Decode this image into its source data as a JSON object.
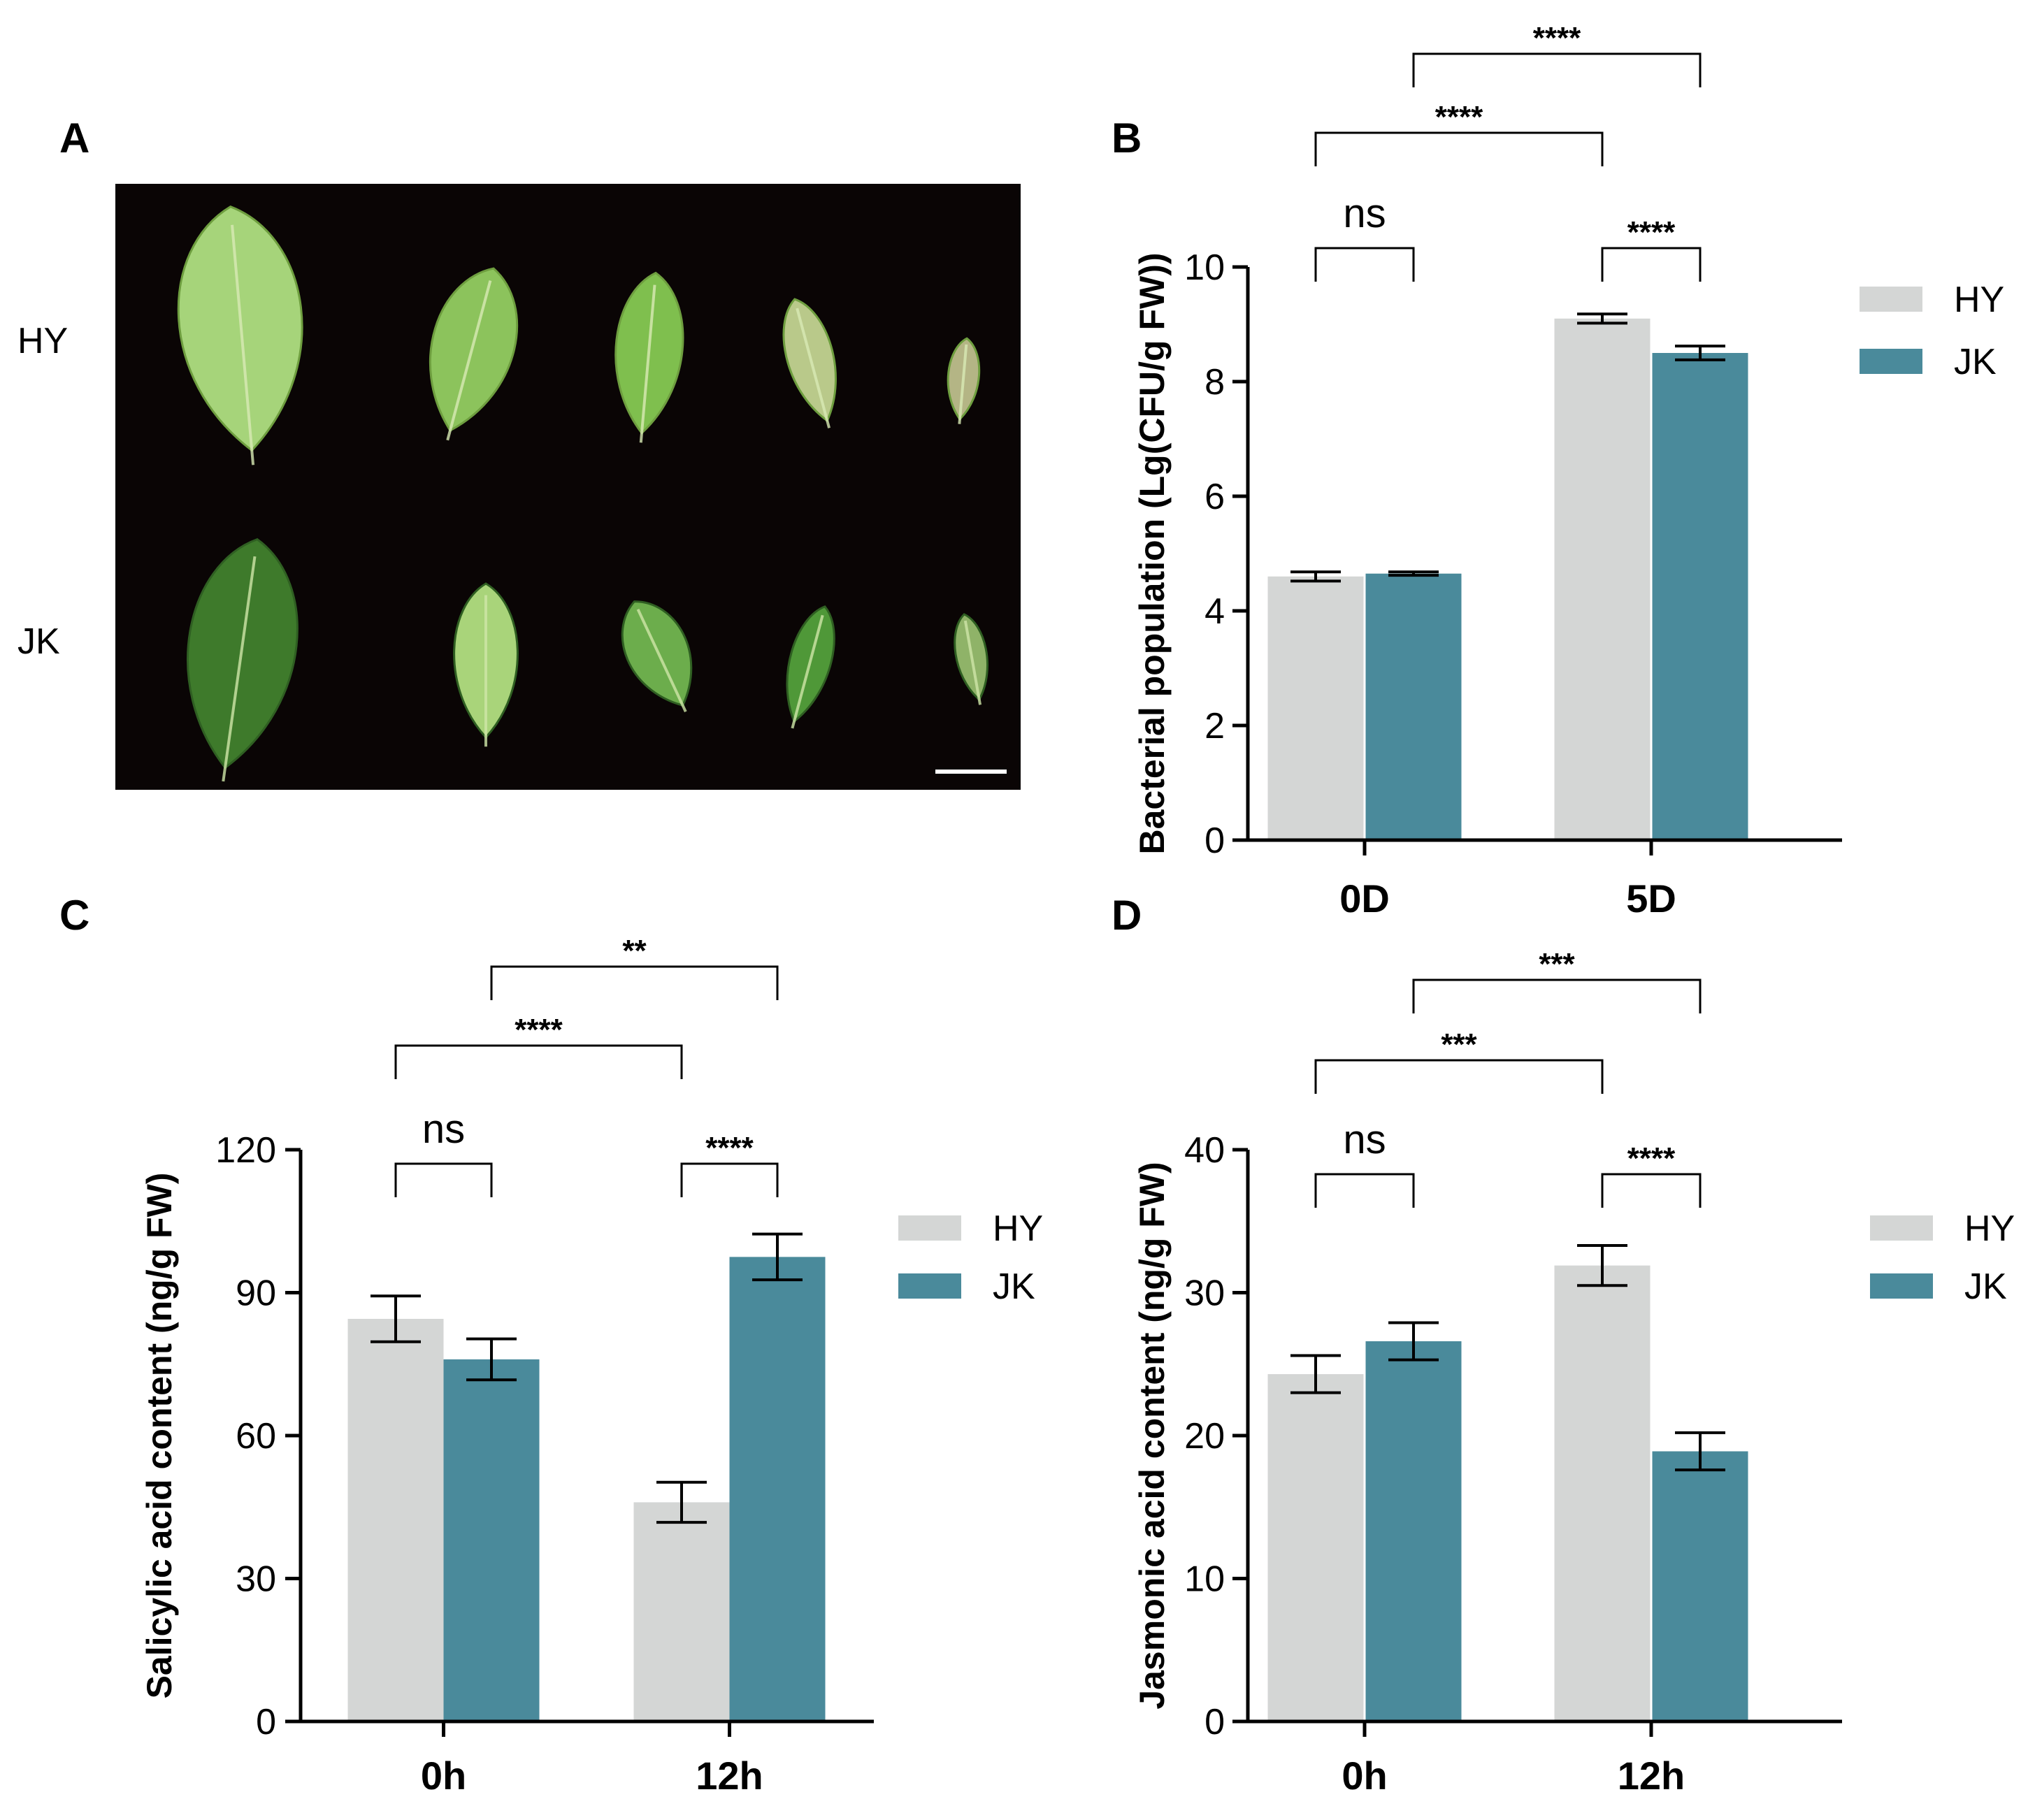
{
  "panels": {
    "A": {
      "letter": "A",
      "row_labels": [
        "HY",
        "JK"
      ],
      "scale_bar": true
    },
    "B": {
      "letter": "B"
    },
    "C": {
      "letter": "C"
    },
    "D": {
      "letter": "D"
    }
  },
  "colors": {
    "HY": "#d4d6d5",
    "JK": "#4a8a9b",
    "photo_background": "#0a0505",
    "leaf_light": "#8fc764",
    "leaf_dark": "#3f7a2c"
  },
  "chart_data": [
    {
      "id": "B",
      "type": "bar",
      "title": "",
      "xlabel": "",
      "ylabel": "Bacterial population (Lg(CFU/g FW))",
      "categories": [
        "0D",
        "5D"
      ],
      "series": [
        {
          "name": "HY",
          "values": [
            4.6,
            9.1
          ],
          "errors": [
            0.08,
            0.08
          ]
        },
        {
          "name": "JK",
          "values": [
            4.65,
            8.5
          ],
          "errors": [
            0.03,
            0.12
          ]
        }
      ],
      "ylim": [
        0,
        10
      ],
      "yticks": [
        0,
        2,
        4,
        6,
        8,
        10
      ],
      "legend": [
        "HY",
        "JK"
      ],
      "legend_position": "top-right",
      "grid": false,
      "significance": [
        {
          "label": "ns",
          "from": "0D.HY",
          "to": "0D.JK"
        },
        {
          "label": "****",
          "from": "5D.HY",
          "to": "5D.JK"
        },
        {
          "label": "****",
          "from": "0D.HY",
          "to": "5D.HY"
        },
        {
          "label": "****",
          "from": "0D.JK",
          "to": "5D.JK"
        }
      ]
    },
    {
      "id": "C",
      "type": "bar",
      "title": "",
      "xlabel": "",
      "ylabel": "Salicylic acid content (ng/g FW)",
      "categories": [
        "0h",
        "12h"
      ],
      "series": [
        {
          "name": "HY",
          "values": [
            84.5,
            46
          ],
          "errors": [
            4.8,
            4.2
          ]
        },
        {
          "name": "JK",
          "values": [
            76,
            97.5
          ],
          "errors": [
            4.3,
            4.8
          ]
        }
      ],
      "ylim": [
        0,
        120
      ],
      "yticks": [
        0,
        30,
        60,
        90,
        120
      ],
      "legend": [
        "HY",
        "JK"
      ],
      "legend_position": "top-right",
      "grid": false,
      "significance": [
        {
          "label": "ns",
          "from": "0h.HY",
          "to": "0h.JK"
        },
        {
          "label": "****",
          "from": "12h.HY",
          "to": "12h.JK"
        },
        {
          "label": "****",
          "from": "0h.HY",
          "to": "12h.HY"
        },
        {
          "label": "**",
          "from": "0h.JK",
          "to": "12h.JK"
        }
      ]
    },
    {
      "id": "D",
      "type": "bar",
      "title": "",
      "xlabel": "",
      "ylabel": "Jasmonic acid content (ng/g FW)",
      "categories": [
        "0h",
        "12h"
      ],
      "series": [
        {
          "name": "HY",
          "values": [
            24.3,
            31.9
          ],
          "errors": [
            1.3,
            1.4
          ]
        },
        {
          "name": "JK",
          "values": [
            26.6,
            18.9
          ],
          "errors": [
            1.3,
            1.3
          ]
        }
      ],
      "ylim": [
        0,
        40
      ],
      "yticks": [
        0,
        10,
        20,
        30,
        40
      ],
      "legend": [
        "HY",
        "JK"
      ],
      "legend_position": "top-right",
      "grid": false,
      "significance": [
        {
          "label": "ns",
          "from": "0h.HY",
          "to": "0h.JK"
        },
        {
          "label": "****",
          "from": "12h.HY",
          "to": "12h.JK"
        },
        {
          "label": "***",
          "from": "0h.HY",
          "to": "12h.HY"
        },
        {
          "label": "***",
          "from": "0h.JK",
          "to": "12h.JK"
        }
      ]
    }
  ]
}
